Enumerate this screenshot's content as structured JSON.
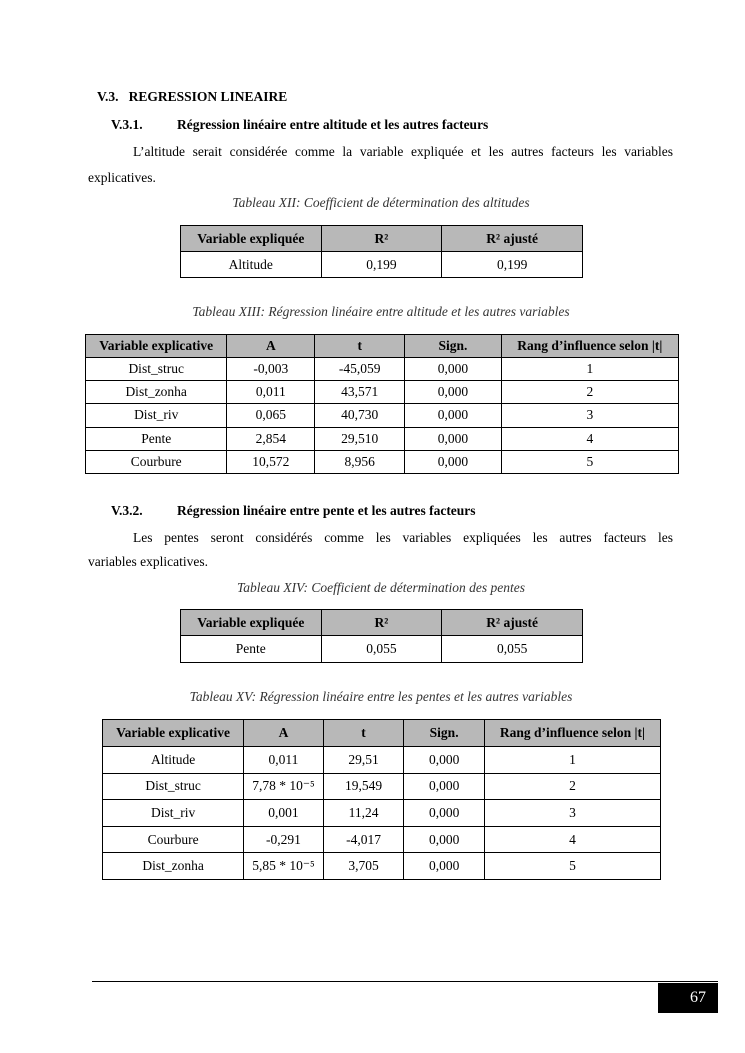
{
  "section": {
    "number": "V.3.",
    "title": "REGRESSION LINEAIRE"
  },
  "sub1": {
    "number": "V.3.1.",
    "title": "Régression linéaire entre altitude et les autres facteurs",
    "para_line1": "L’altitude serait considérée comme la variable expliquée et les autres facteurs les variables",
    "para_line2": "explicatives."
  },
  "table12": {
    "caption": "Tableau XII: Coefficient de détermination des altitudes",
    "headers": [
      "Variable expliquée",
      "R²",
      "R² ajusté"
    ],
    "rows": [
      [
        "Altitude",
        "0,199",
        "0,199"
      ]
    ]
  },
  "table13": {
    "caption": "Tableau XIII: Régression linéaire entre altitude et les autres variables",
    "headers": [
      "Variable explicative",
      "A",
      "t",
      "Sign.",
      "Rang d’influence selon |t|"
    ],
    "rows": [
      [
        "Dist_struc",
        "-0,003",
        "-45,059",
        "0,000",
        "1"
      ],
      [
        "Dist_zonha",
        "0,011",
        "43,571",
        "0,000",
        "2"
      ],
      [
        "Dist_riv",
        "0,065",
        "40,730",
        "0,000",
        "3"
      ],
      [
        "Pente",
        "2,854",
        "29,510",
        "0,000",
        "4"
      ],
      [
        "Courbure",
        "10,572",
        "8,956",
        "0,000",
        "5"
      ]
    ]
  },
  "sub2": {
    "number": "V.3.2.",
    "title": "Régression linéaire entre pente et les autres facteurs",
    "para_line1": "Les pentes seront considérés comme les variables expliquées les autres facteurs les",
    "para_line2": "variables explicatives."
  },
  "table14": {
    "caption": "Tableau XIV: Coefficient de détermination des pentes",
    "headers": [
      "Variable expliquée",
      "R²",
      "R² ajusté"
    ],
    "rows": [
      [
        "Pente",
        "0,055",
        "0,055"
      ]
    ]
  },
  "table15": {
    "caption": "Tableau XV: Régression linéaire entre les pentes et les autres variables",
    "headers": [
      "Variable explicative",
      "A",
      "t",
      "Sign.",
      "Rang d’influence selon |t|"
    ],
    "rows": [
      [
        "Altitude",
        "0,011",
        "29,51",
        "0,000",
        "1"
      ],
      [
        "Dist_struc",
        "7,78 * 10⁻⁵",
        "19,549",
        "0,000",
        "2"
      ],
      [
        "Dist_riv",
        "0,001",
        "11,24",
        "0,000",
        "3"
      ],
      [
        "Courbure",
        "-0,291",
        "-4,017",
        "0,000",
        "4"
      ],
      [
        "Dist_zonha",
        "5,85 * 10⁻⁵",
        "3,705",
        "0,000",
        "5"
      ]
    ]
  },
  "footer": {
    "page_number": "67"
  }
}
